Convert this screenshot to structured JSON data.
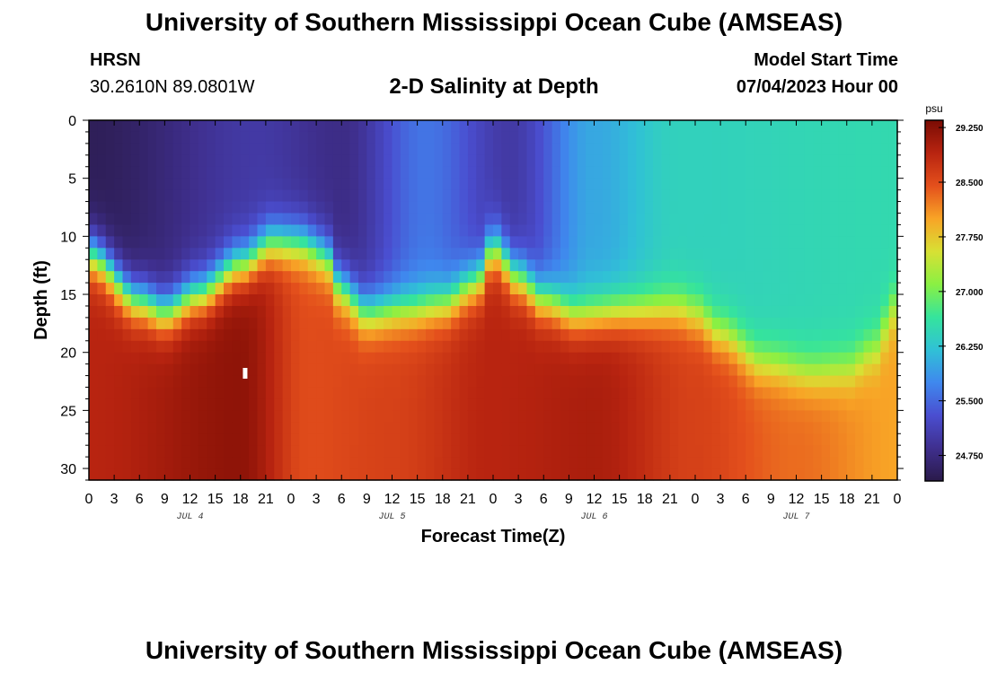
{
  "header": {
    "title": "University of Southern Mississippi Ocean Cube (AMSEAS)",
    "station": "HRSN",
    "coords": "30.2610N  89.0801W",
    "subtitle": "2-D Salinity at Depth",
    "model_start_label": "Model Start Time",
    "model_start_value": "07/04/2023 Hour 00"
  },
  "footer": {
    "title": "University of Southern Mississippi Ocean Cube (AMSEAS)"
  },
  "chart_data": {
    "type": "heatmap",
    "title": "2-D Salinity at Depth",
    "xlabel": "Forecast Time(Z)",
    "ylabel": "Depth (ft)",
    "x_unit": "hours from model start",
    "xlim": [
      0,
      96
    ],
    "ylim": [
      0,
      31
    ],
    "y_inverted": true,
    "x_tick_labels": [
      "0",
      "3",
      "6",
      "9",
      "12",
      "15",
      "18",
      "21",
      "0",
      "3",
      "6",
      "9",
      "12",
      "15",
      "18",
      "21",
      "0",
      "3",
      "6",
      "9",
      "12",
      "15",
      "18",
      "21",
      "0",
      "3",
      "6",
      "9",
      "12",
      "15",
      "18",
      "21",
      "0"
    ],
    "y_ticks": [
      0,
      5,
      10,
      15,
      20,
      25,
      30
    ],
    "y_tick_labels": [
      "0",
      "5",
      "10",
      "15",
      "20",
      "25",
      "30"
    ],
    "day_labels": [
      {
        "hour": 12,
        "label": "JUL 4"
      },
      {
        "hour": 36,
        "label": "JUL 5"
      },
      {
        "hour": 60,
        "label": "JUL 6"
      },
      {
        "hour": 84,
        "label": "JUL 7"
      }
    ],
    "colorbar": {
      "unit": "psu",
      "min": 24.4,
      "max": 29.35,
      "ticks": [
        29.25,
        28.5,
        27.75,
        27.0,
        26.25,
        25.5,
        24.75
      ],
      "tick_labels": [
        "29.250",
        "28.500",
        "27.750",
        "27.000",
        "26.250",
        "25.500",
        "24.750"
      ],
      "colors": [
        "#2a1a4a",
        "#3f2f8e",
        "#4a4ed0",
        "#3f88ee",
        "#30c1d6",
        "#35e49c",
        "#8af043",
        "#d8e034",
        "#f8a426",
        "#e4501c",
        "#b82410",
        "#7a0c04"
      ]
    },
    "halocline_depth_ft_by_hour": [
      [
        0,
        11.5
      ],
      [
        6,
        15.5
      ],
      [
        9,
        16.5
      ],
      [
        13,
        15.0
      ],
      [
        18,
        12.5
      ],
      [
        22,
        10.5
      ],
      [
        25,
        10.5
      ],
      [
        28,
        11.5
      ],
      [
        30,
        14.5
      ],
      [
        33,
        16.5
      ],
      [
        38,
        16.2
      ],
      [
        42,
        15.8
      ],
      [
        46,
        14.0
      ],
      [
        48,
        11.0
      ],
      [
        51,
        13.5
      ],
      [
        54,
        15.5
      ],
      [
        58,
        16.8
      ],
      [
        64,
        16.5
      ],
      [
        70,
        16.3
      ],
      [
        72,
        16.8
      ],
      [
        75,
        18.5
      ],
      [
        80,
        21.0
      ],
      [
        86,
        21.8
      ],
      [
        90,
        21.5
      ],
      [
        93,
        20.0
      ],
      [
        96,
        16.0
      ]
    ],
    "surface_salinity_psu_by_hour": [
      [
        0,
        24.5
      ],
      [
        20,
        25.0
      ],
      [
        30,
        24.8
      ],
      [
        40,
        25.6
      ],
      [
        50,
        25.0
      ],
      [
        60,
        26.0
      ],
      [
        70,
        26.4
      ],
      [
        96,
        26.5
      ]
    ],
    "deep_salinity_psu_by_hour": [
      [
        0,
        28.9
      ],
      [
        18,
        29.2
      ],
      [
        26,
        28.5
      ],
      [
        36,
        28.6
      ],
      [
        48,
        28.9
      ],
      [
        60,
        29.0
      ],
      [
        72,
        28.6
      ],
      [
        84,
        28.3
      ],
      [
        96,
        28.0
      ]
    ],
    "max_marker": {
      "hour": 18.5,
      "depth_ft": 21.8
    }
  }
}
